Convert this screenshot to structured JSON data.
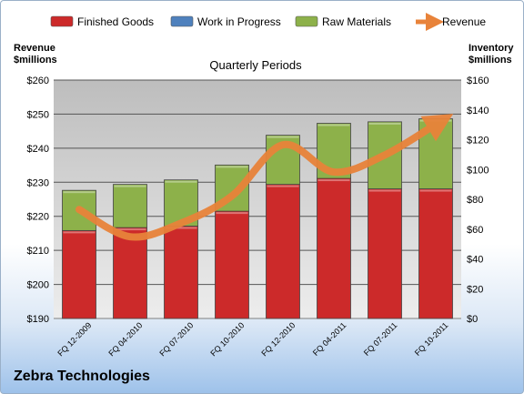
{
  "company": "Zebra Technologies",
  "chart_data": {
    "type": "bar",
    "stacked": true,
    "subtitle": "Quarterly Periods",
    "left_axis_label": [
      "Revenue",
      "$millions"
    ],
    "right_axis_label": [
      "Inventory",
      "$millions"
    ],
    "categories": [
      "FQ 12-2009",
      "FQ 04-2010",
      "FQ 07-2010",
      "FQ 10-2010",
      "FQ 12-2010",
      "FQ 04-2011",
      "FQ 07-2011",
      "FQ 10-2011"
    ],
    "left_ylim": [
      190,
      260
    ],
    "left_ticks": [
      "$190",
      "$200",
      "$210",
      "$220",
      "$230",
      "$240",
      "$250",
      "$260"
    ],
    "right_ylim": [
      0,
      160
    ],
    "right_ticks": [
      "$0",
      "$20",
      "$40",
      "$60",
      "$80",
      "$100",
      "$120",
      "$140",
      "$160"
    ],
    "grid": true,
    "legend_position": "top",
    "series": [
      {
        "name": "Finished Goods",
        "axis": "right",
        "color": "#cc2a2a",
        "values": [
          59,
          61,
          62,
          72,
          90,
          94,
          87,
          87
        ]
      },
      {
        "name": "Work in Progress",
        "axis": "right",
        "color": "#4f81bd",
        "values": [
          0,
          0,
          0,
          0,
          0,
          0,
          0,
          0
        ]
      },
      {
        "name": "Raw Materials",
        "axis": "right",
        "color": "#8db14a",
        "values": [
          27,
          29,
          31,
          31,
          33,
          37,
          45,
          47
        ]
      },
      {
        "name": "Revenue",
        "axis": "left",
        "type": "line",
        "color": "#e8833a",
        "values": [
          222,
          214,
          218,
          226,
          241,
          233,
          238,
          247
        ]
      }
    ]
  }
}
